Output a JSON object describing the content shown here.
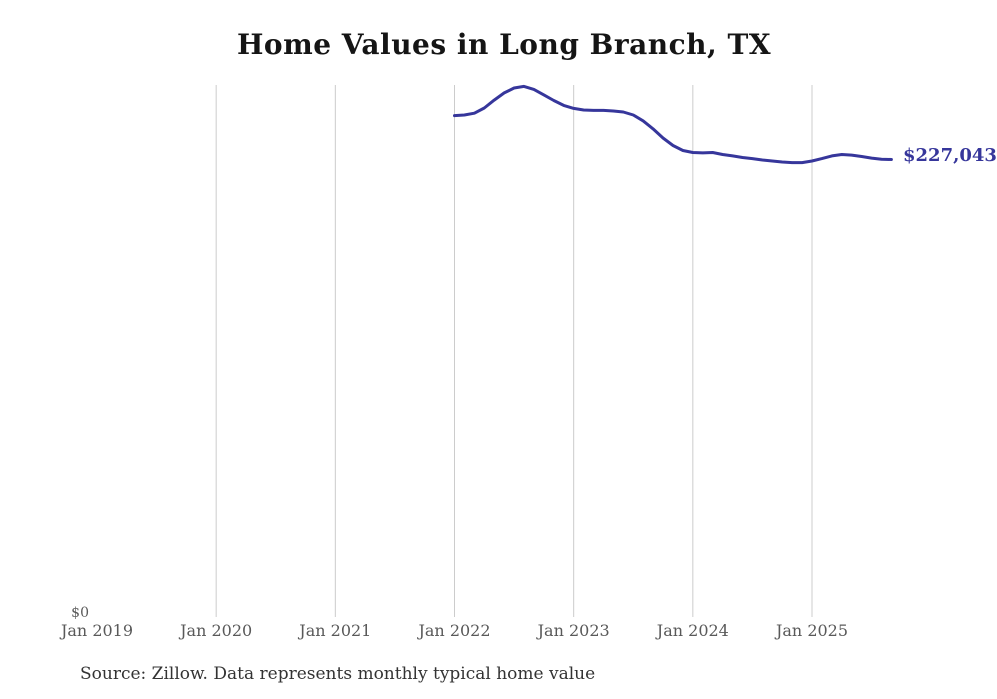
{
  "chart_data": {
    "type": "line",
    "title": "Home Values in Long Branch, TX",
    "xlabel": "",
    "ylabel": "",
    "y_zero_label": "$0",
    "end_label": "$227,043",
    "x_tick_labels": [
      "Jan 2019",
      "Jan 2020",
      "Jan 2021",
      "Jan 2022",
      "Jan 2023",
      "Jan 2024",
      "Jan 2025"
    ],
    "ylim": [
      0,
      264000
    ],
    "grid": "vertical-only",
    "line_color": "#36369b",
    "grid_color": "#cccccc",
    "series": [
      {
        "name": "Typical home value",
        "months": [
          "2022-01",
          "2022-02",
          "2022-03",
          "2022-04",
          "2022-05",
          "2022-06",
          "2022-07",
          "2022-08",
          "2022-09",
          "2022-10",
          "2022-11",
          "2022-12",
          "2023-01",
          "2023-02",
          "2023-03",
          "2023-04",
          "2023-05",
          "2023-06",
          "2023-07",
          "2023-08",
          "2023-09",
          "2023-10",
          "2023-11",
          "2023-12",
          "2024-01",
          "2024-02",
          "2024-03",
          "2024-04",
          "2024-05",
          "2024-06",
          "2024-07",
          "2024-08",
          "2024-09",
          "2024-10",
          "2024-11",
          "2024-12",
          "2025-01",
          "2025-02",
          "2025-03",
          "2025-04",
          "2025-05",
          "2025-06",
          "2025-07",
          "2025-08",
          "2025-09"
        ],
        "values": [
          248800,
          249100,
          250000,
          252600,
          256500,
          260100,
          262500,
          263300,
          261800,
          259100,
          256300,
          253900,
          252400,
          251600,
          251400,
          251400,
          251100,
          250600,
          249100,
          246200,
          242200,
          237700,
          234000,
          231500,
          230500,
          230300,
          230500,
          229500,
          228800,
          228000,
          227500,
          226800,
          226300,
          225800,
          225500,
          225500,
          226300,
          227500,
          228800,
          229500,
          229200,
          228500,
          227700,
          227200,
          227043
        ]
      }
    ],
    "source_note": "Source: Zillow. Data represents monthly typical home value"
  }
}
